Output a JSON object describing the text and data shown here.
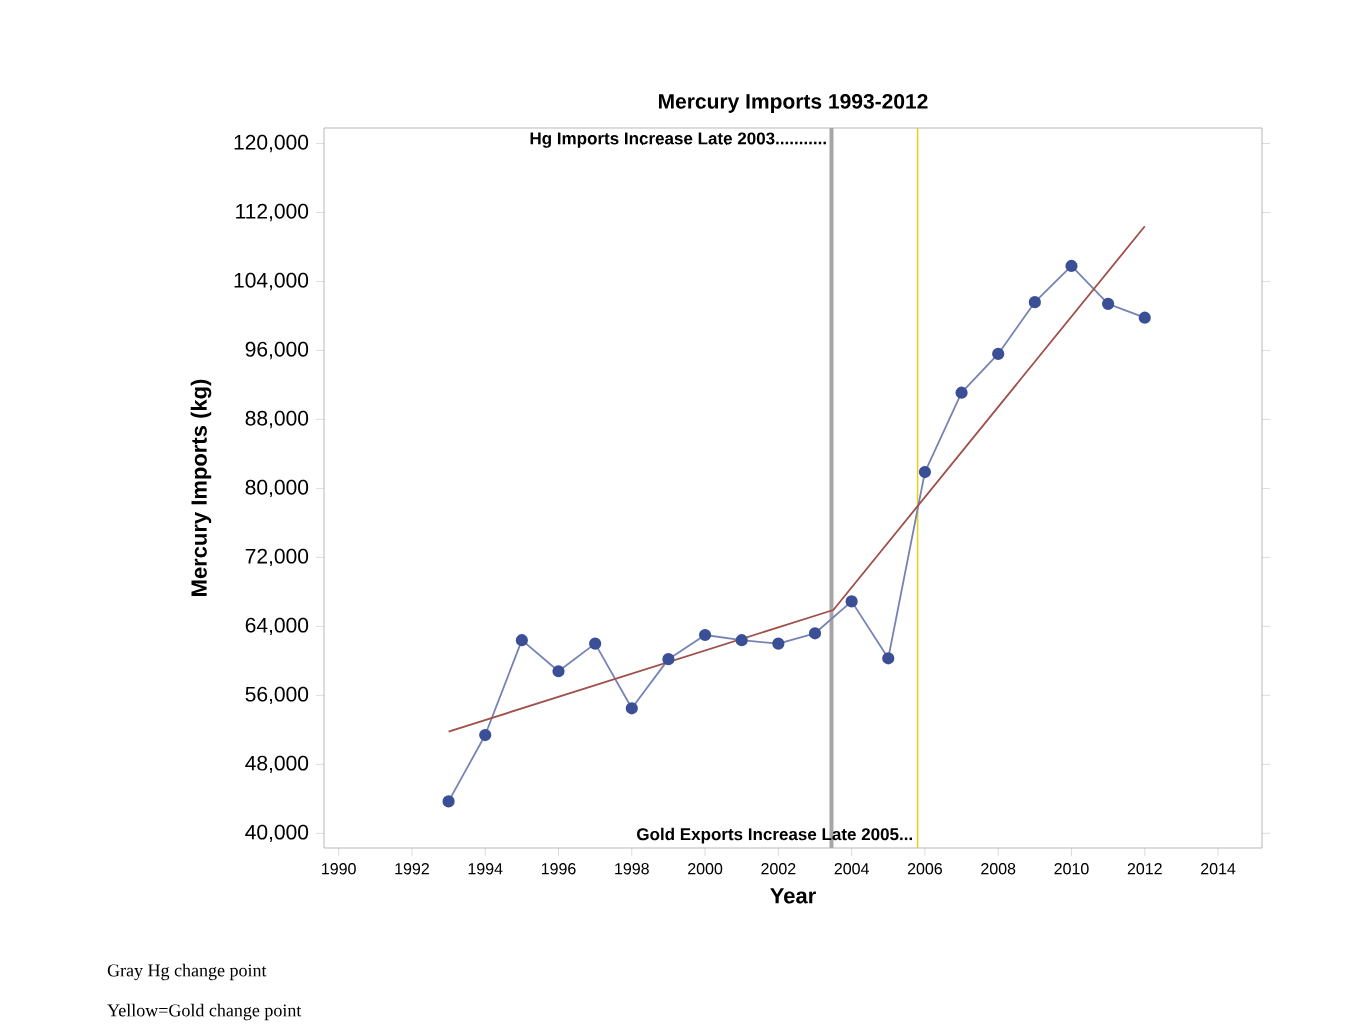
{
  "chart_data": {
    "type": "line",
    "title": "Mercury Imports 1993-2012",
    "xlabel": "Year",
    "ylabel": "Mercury Imports (kg)",
    "xlim": [
      1989.6,
      2015.2
    ],
    "ylim": [
      38300,
      121800
    ],
    "xticks": [
      1990,
      1992,
      1994,
      1996,
      1998,
      2000,
      2002,
      2004,
      2006,
      2008,
      2010,
      2012,
      2014
    ],
    "yticks": [
      {
        "value": 40000,
        "label": "40,000"
      },
      {
        "value": 48000,
        "label": "48,000"
      },
      {
        "value": 56000,
        "label": "56,000"
      },
      {
        "value": 64000,
        "label": "64,000"
      },
      {
        "value": 72000,
        "label": "72,000"
      },
      {
        "value": 80000,
        "label": "80,000"
      },
      {
        "value": 88000,
        "label": "88,000"
      },
      {
        "value": 96000,
        "label": "96,000"
      },
      {
        "value": 104000,
        "label": "104,000"
      },
      {
        "value": 112000,
        "label": "112,000"
      },
      {
        "value": 120000,
        "label": "120,000"
      }
    ],
    "x": [
      1993,
      1994,
      1995,
      1996,
      1997,
      1998,
      1999,
      2000,
      2001,
      2002,
      2003,
      2004,
      2005,
      2006,
      2007,
      2008,
      2009,
      2010,
      2011,
      2012
    ],
    "series": [
      {
        "marker": "circle",
        "color": "#3b4f96",
        "values": [
          43700,
          51400,
          62400,
          58800,
          62000,
          54500,
          60200,
          63000,
          62400,
          62000,
          63200,
          66900,
          60300,
          81900,
          91100,
          95600,
          101600,
          105800,
          101400,
          99800
        ]
      },
      {
        "type": "line",
        "marker": "none",
        "color": "#a0504a",
        "x": [
          1993,
          2003.5,
          2012
        ],
        "values": [
          51800,
          65900,
          110400
        ]
      }
    ],
    "ref_lines": [
      {
        "axis": "x",
        "value": 2003.45,
        "label": "Hg Imports Increase Late 2003...........",
        "color": "#a6a6a6"
      },
      {
        "axis": "x",
        "value": 2005.8,
        "label": "Gold Exports Increase Late 2005...",
        "color": "#e8d020"
      }
    ],
    "grid": false,
    "annotations": [
      "Gray Hg change point",
      "Yellow=Gold change point"
    ]
  }
}
